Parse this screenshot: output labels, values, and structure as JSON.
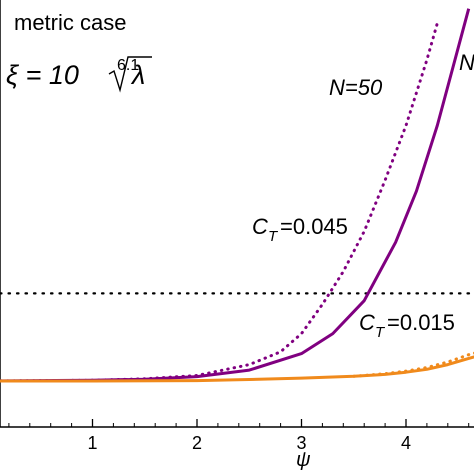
{
  "chart_data": {
    "type": "line",
    "title": "",
    "xlabel": "ψ",
    "ylabel": "",
    "xlim": [
      0,
      4.7
    ],
    "ylim": [
      0,
      1
    ],
    "x_ticks": [
      "1",
      "2",
      "3",
      "4"
    ],
    "y_ticks": [],
    "grid": false,
    "legend": "none",
    "annotations": {
      "case": "metric case",
      "xi_lhs": "ξ = 10",
      "xi_exp": "6.1",
      "xi_root": "λ",
      "n_label": "N=50",
      "n_label_cut": "N",
      "ct_purple_label": "C",
      "ct_purple_sub": "T",
      "ct_purple_value": "=0.045",
      "ct_orange_label": "C",
      "ct_orange_sub": "T",
      "ct_orange_value": "=0.015"
    },
    "reference_lines": [
      {
        "y": 0.24,
        "style": "dotted",
        "color": "#000000"
      }
    ],
    "series": [
      {
        "color": "#800080",
        "style": "solid",
        "x": [
          0,
          1,
          1.5,
          2,
          2.5,
          3,
          3.3,
          3.6,
          3.9,
          4.1,
          4.3,
          4.45,
          4.6
        ],
        "y": [
          0,
          0.002,
          0.005,
          0.012,
          0.03,
          0.075,
          0.13,
          0.22,
          0.38,
          0.52,
          0.7,
          0.86,
          1.02
        ]
      },
      {
        "color": "#800080",
        "style": "dotted",
        "x": [
          0,
          1,
          1.5,
          2,
          2.5,
          2.8,
          3.0,
          3.2,
          3.4,
          3.6,
          3.8,
          4.0,
          4.2,
          4.3
        ],
        "y": [
          0,
          0.002,
          0.006,
          0.015,
          0.045,
          0.08,
          0.13,
          0.21,
          0.3,
          0.41,
          0.55,
          0.7,
          0.88,
          0.98
        ]
      },
      {
        "color": "#f08a1c",
        "style": "solid",
        "x": [
          0,
          1,
          2,
          2.5,
          3,
          3.5,
          3.8,
          4.0,
          4.2,
          4.4,
          4.6,
          4.7
        ],
        "y": [
          0,
          0.0,
          0.001,
          0.004,
          0.008,
          0.013,
          0.018,
          0.024,
          0.032,
          0.045,
          0.062,
          0.07
        ]
      },
      {
        "color": "#f08a1c",
        "style": "dotted",
        "x": [
          3.5,
          3.8,
          4.0,
          4.2,
          4.4,
          4.6,
          4.7
        ],
        "y": [
          0.013,
          0.02,
          0.027,
          0.037,
          0.052,
          0.072,
          0.08
        ]
      }
    ]
  }
}
